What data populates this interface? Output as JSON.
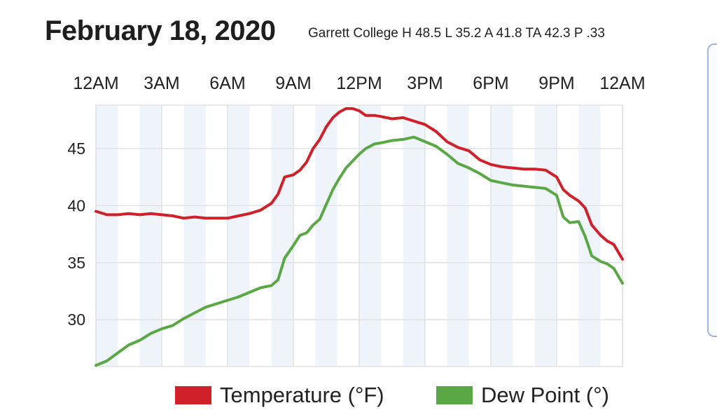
{
  "header": {
    "date": "February 18, 2020",
    "summary": "Garrett College H 48.5 L 35.2 A 41.8 TA 42.3 P .33"
  },
  "colors": {
    "temperature": "#d0202a",
    "dew_point": "#5aa845",
    "band": "#eef4fa",
    "grid": "#e2e2e2"
  },
  "chart_data": {
    "type": "line",
    "title": "",
    "xlabel": "",
    "ylabel": "",
    "x_ticks": [
      "12AM",
      "3AM",
      "6AM",
      "9AM",
      "12PM",
      "3PM",
      "6PM",
      "9PM",
      "12AM"
    ],
    "y_ticks": [
      30,
      35,
      40,
      45
    ],
    "ylim": [
      25.9,
      48.8
    ],
    "xlim": [
      0,
      24
    ],
    "grid": true,
    "legend_position": "bottom",
    "series": [
      {
        "name": "Temperature (°F)",
        "color": "#d0202a",
        "x": [
          0,
          0.5,
          1,
          1.5,
          2,
          2.5,
          3,
          3.5,
          4,
          4.5,
          5,
          5.5,
          6,
          6.5,
          7,
          7.5,
          8,
          8.3,
          8.6,
          9,
          9.3,
          9.6,
          9.9,
          10.2,
          10.5,
          10.8,
          11.1,
          11.4,
          11.7,
          12,
          12.3,
          12.7,
          13,
          13.5,
          14,
          14.5,
          15,
          15.5,
          16,
          16.5,
          17,
          17.5,
          18,
          18.5,
          19,
          19.5,
          20,
          20.5,
          21,
          21.3,
          21.6,
          22,
          22.3,
          22.6,
          23,
          23.3,
          23.6,
          24
        ],
        "values": [
          39.5,
          39.2,
          39.2,
          39.3,
          39.2,
          39.3,
          39.2,
          39.1,
          38.9,
          39.0,
          38.9,
          38.9,
          38.9,
          39.1,
          39.3,
          39.6,
          40.2,
          41.0,
          42.5,
          42.7,
          43.1,
          43.8,
          45.0,
          45.8,
          46.9,
          47.7,
          48.2,
          48.5,
          48.5,
          48.3,
          47.9,
          47.9,
          47.8,
          47.6,
          47.7,
          47.4,
          47.1,
          46.5,
          45.6,
          45.1,
          44.8,
          44.0,
          43.6,
          43.4,
          43.3,
          43.2,
          43.2,
          43.1,
          42.5,
          41.4,
          40.9,
          40.4,
          39.8,
          38.3,
          37.4,
          36.9,
          36.6,
          35.3
        ]
      },
      {
        "name": "Dew Point (°)",
        "color": "#5aa845",
        "x": [
          0,
          0.5,
          1,
          1.5,
          2,
          2.5,
          3,
          3.5,
          4,
          4.5,
          5,
          5.5,
          6,
          6.5,
          7,
          7.5,
          8,
          8.3,
          8.6,
          9,
          9.3,
          9.6,
          9.9,
          10.2,
          10.5,
          10.8,
          11.1,
          11.4,
          11.7,
          12,
          12.3,
          12.7,
          13,
          13.5,
          14,
          14.5,
          15,
          15.5,
          16,
          16.5,
          17,
          17.5,
          18,
          18.5,
          19,
          19.5,
          20,
          20.5,
          21,
          21.3,
          21.6,
          22,
          22.3,
          22.6,
          23,
          23.3,
          23.6,
          24
        ],
        "values": [
          26.0,
          26.4,
          27.1,
          27.8,
          28.2,
          28.8,
          29.2,
          29.5,
          30.1,
          30.6,
          31.1,
          31.4,
          31.7,
          32.0,
          32.4,
          32.8,
          33.0,
          33.5,
          35.4,
          36.5,
          37.4,
          37.6,
          38.3,
          38.8,
          40.1,
          41.4,
          42.4,
          43.3,
          43.9,
          44.5,
          45.0,
          45.4,
          45.5,
          45.7,
          45.8,
          46.0,
          45.6,
          45.2,
          44.5,
          43.7,
          43.3,
          42.8,
          42.2,
          42.0,
          41.8,
          41.7,
          41.6,
          41.5,
          40.9,
          39.0,
          38.5,
          38.6,
          37.3,
          35.6,
          35.1,
          34.9,
          34.5,
          33.2
        ]
      }
    ]
  }
}
